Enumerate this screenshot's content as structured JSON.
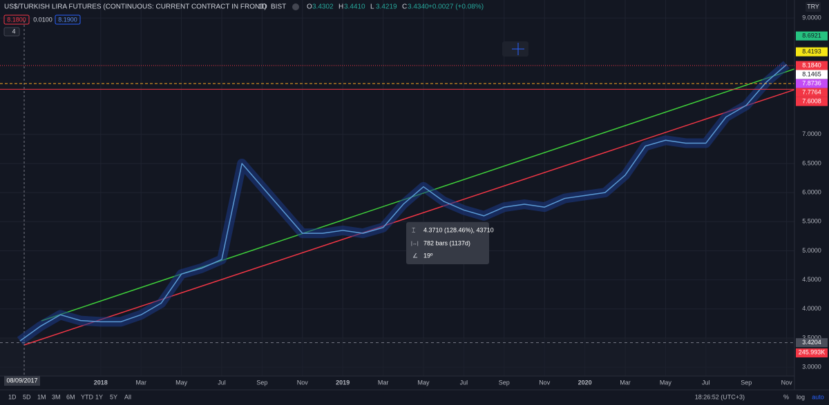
{
  "header": {
    "title": "US$/TURKISH LIRA FUTURES (CONTINUOUS: CURRENT CONTRACT IN FRONT)",
    "interval": "1D",
    "exchange": "BIST",
    "ohlc": [
      {
        "key": "O",
        "value": "3.4302"
      },
      {
        "key": "H",
        "value": "3.4410"
      },
      {
        "key": "L",
        "value": "3.4219"
      },
      {
        "key": "C",
        "value": "3.4340"
      }
    ],
    "change": "+0.0027 (+0.08%)"
  },
  "order": {
    "sell": "8.1800",
    "spread": "0.0100",
    "buy": "8.1900"
  },
  "indicator_count": "4",
  "currency": "TRY",
  "chart_data": {
    "type": "line",
    "color": "#5b9bd5",
    "categories": [
      null,
      null,
      null,
      null,
      "2018",
      null,
      "Mar",
      null,
      "May",
      null,
      "Jul",
      null,
      "Sep",
      null,
      "Nov",
      null,
      "2019",
      null,
      "Mar",
      null,
      "May",
      null,
      "Jul",
      null,
      "Sep",
      null,
      "Nov",
      null,
      "2020",
      null,
      "Mar",
      null,
      "May",
      null,
      "Jul",
      null,
      "Sep",
      null,
      "Nov"
    ],
    "values": [
      3.45,
      3.7,
      3.9,
      3.8,
      3.78,
      3.78,
      3.9,
      4.1,
      4.6,
      4.7,
      4.85,
      6.5,
      6.1,
      5.7,
      5.3,
      5.3,
      5.35,
      5.3,
      5.4,
      5.8,
      6.1,
      5.85,
      5.7,
      5.6,
      5.75,
      5.8,
      5.75,
      5.9,
      5.95,
      6.0,
      6.3,
      6.8,
      6.9,
      6.85,
      6.85,
      7.3,
      7.5,
      7.9,
      8.2
    ],
    "ylim": [
      2.61,
      9.31
    ],
    "yticks": [
      {
        "value": 3,
        "label": "3.0000"
      },
      {
        "value": 3.5,
        "label": "3.5000"
      },
      {
        "value": 4,
        "label": "4.0000"
      },
      {
        "value": 4.5,
        "label": "4.5000"
      },
      {
        "value": 5,
        "label": "5.0000"
      },
      {
        "value": 5.5,
        "label": "5.5000"
      },
      {
        "value": 6,
        "label": "6.0000"
      },
      {
        "value": 6.5,
        "label": "6.5000"
      },
      {
        "value": 7,
        "label": "7.0000"
      },
      {
        "value": 9,
        "label": "9.0000"
      }
    ],
    "grid": true
  },
  "price_badges": [
    {
      "value": 8.6921,
      "label": "8.6921",
      "color": "#26c281"
    },
    {
      "value": 8.4193,
      "label": "8.4193",
      "color": "#f5e616"
    },
    {
      "value": 8.184,
      "label": "8.1840",
      "color": "#f23645",
      "line": "dotted"
    },
    {
      "value": 8.1465,
      "label": "8.1465",
      "color": "#ffffff"
    },
    {
      "value": 7.8736,
      "label": "7.8736",
      "color": "#c34cf5",
      "line": "dashed-orange"
    },
    {
      "value": 7.7764,
      "label": "7.7764",
      "color": "#f23645",
      "line": "solid"
    },
    {
      "value": 7.6008,
      "label": "7.6008",
      "color": "#f23645"
    },
    {
      "value": 3.4204,
      "label": "3.4204",
      "color": "#4a4e5a",
      "line": "dashed"
    }
  ],
  "volume_badge": "245.993K",
  "crosshair_date": "08/09/2017",
  "measure": {
    "range": "4.3710 (128.46%), 43710",
    "bars": "782 bars (1137d)",
    "angle": "19º"
  },
  "toolbar": {
    "ranges": [
      "1D",
      "5D",
      "1M",
      "3M",
      "6M",
      "YTD",
      "1Y",
      "5Y",
      "All"
    ],
    "time": "18:26:52 (UTC+3)",
    "percent": "%",
    "log": "log",
    "auto": "auto"
  }
}
